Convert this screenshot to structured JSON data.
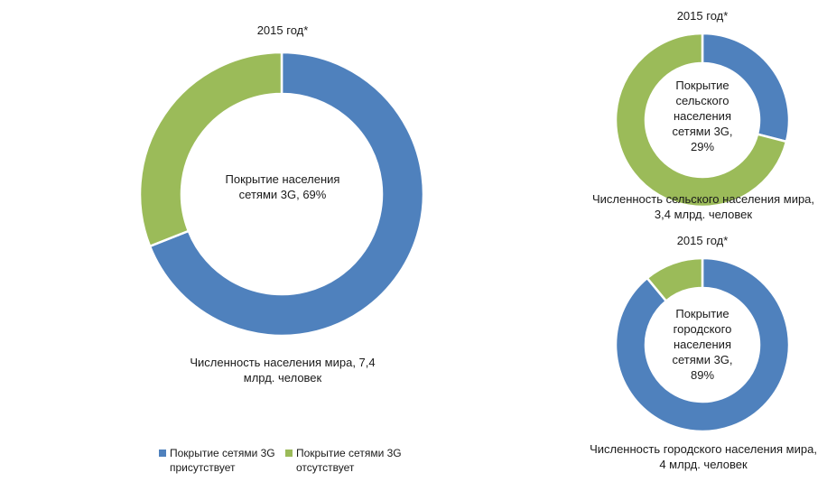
{
  "colors": {
    "covered": "#4F81BD",
    "not_covered": "#9BBB59"
  },
  "legend": {
    "covered_label": "Покрытие сетями 3G присутствует",
    "not_covered_label": "Покрытие сетями 3G отсутствует"
  },
  "chart_data": [
    {
      "type": "pie",
      "title": "2015 год*",
      "center_label": "Покрытие населения сетями 3G, 69%",
      "footnote": "Численность населения мира, 7,4 млрд. человек",
      "categories": [
        "Покрытие сетями 3G присутствует",
        "Покрытие сетями 3G отсутствует"
      ],
      "values": [
        69,
        31
      ]
    },
    {
      "type": "pie",
      "title": "2015 год*",
      "center_label": "Покрытие сельского населения сетями 3G, 29%",
      "footnote": "Численность сельского населения мира, 3,4 млрд. человек",
      "categories": [
        "Покрытие сетями 3G присутствует",
        "Покрытие сетями 3G отсутствует"
      ],
      "values": [
        29,
        71
      ]
    },
    {
      "type": "pie",
      "title": "2015 год*",
      "center_label": "Покрытие городского населения сетями 3G, 89%",
      "footnote": "Численность городского населения мира, 4 млрд. человек",
      "categories": [
        "Покрытие сетями 3G присутствует",
        "Покрытие сетями 3G отсутствует"
      ],
      "values": [
        89,
        11
      ]
    }
  ]
}
